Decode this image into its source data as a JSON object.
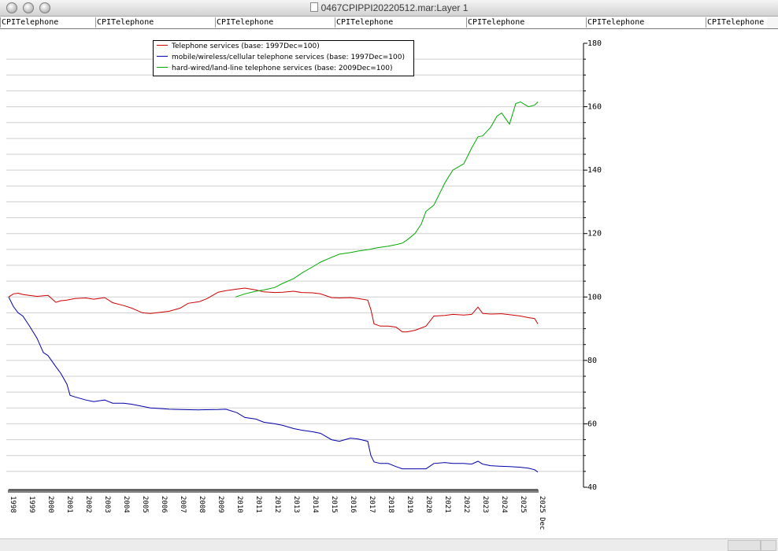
{
  "window": {
    "title": "0467CPIPPI20220512.mar:Layer 1"
  },
  "tabs": [
    "CPITelephone",
    "CPITelephone",
    "CPITelephone",
    "CPITelephone",
    "CPITelephone",
    "CPITelephone",
    "CPITelephone"
  ],
  "chart_data": {
    "type": "line",
    "title": "",
    "xlabel": "",
    "ylabel": "",
    "ylim": [
      40,
      180
    ],
    "y_ticks": [
      40,
      60,
      80,
      100,
      120,
      140,
      160,
      180
    ],
    "y_axis_position": "right",
    "grid": true,
    "legend_position": "top-left",
    "x_range": [
      "1997-12",
      "2025-12"
    ],
    "x_tick_labels": [
      "1998",
      "1999",
      "2000",
      "2001",
      "2002",
      "2003",
      "2004",
      "2005",
      "2006",
      "2007",
      "2008",
      "2009",
      "2010",
      "2011",
      "2012",
      "2013",
      "2014",
      "2015",
      "2016",
      "2017",
      "2018",
      "2019",
      "2020",
      "2021",
      "2022",
      "2023",
      "2024",
      "2025",
      "2025 Dec"
    ],
    "series": [
      {
        "name": "Telephone services (base: 1997Dec=100)",
        "color": "#cc0000",
        "points": [
          [
            "1997-12",
            100
          ],
          [
            "1998-03",
            101
          ],
          [
            "1998-06",
            101.2
          ],
          [
            "1998-09",
            100.8
          ],
          [
            "1999-01",
            100.5
          ],
          [
            "1999-06",
            100.2
          ],
          [
            "2000-01",
            100.5
          ],
          [
            "2000-06",
            98.3
          ],
          [
            "2000-09",
            98.8
          ],
          [
            "2001-01",
            99
          ],
          [
            "2001-06",
            99.5
          ],
          [
            "2002-01",
            99.7
          ],
          [
            "2002-06",
            99.3
          ],
          [
            "2003-01",
            99.8
          ],
          [
            "2003-06",
            98.2
          ],
          [
            "2004-01",
            97.3
          ],
          [
            "2004-06",
            96.5
          ],
          [
            "2005-01",
            95
          ],
          [
            "2005-06",
            94.8
          ],
          [
            "2006-01",
            95.2
          ],
          [
            "2006-06",
            95.5
          ],
          [
            "2007-01",
            96.5
          ],
          [
            "2007-06",
            98
          ],
          [
            "2008-01",
            98.5
          ],
          [
            "2008-06",
            99.5
          ],
          [
            "2009-01",
            101.5
          ],
          [
            "2009-06",
            102
          ],
          [
            "2010-01",
            102.5
          ],
          [
            "2010-06",
            102.8
          ],
          [
            "2011-01",
            102.2
          ],
          [
            "2011-06",
            101.6
          ],
          [
            "2012-01",
            101.4
          ],
          [
            "2012-06",
            101.5
          ],
          [
            "2013-01",
            101.8
          ],
          [
            "2013-06",
            101.4
          ],
          [
            "2014-01",
            101.3
          ],
          [
            "2014-06",
            101
          ],
          [
            "2015-01",
            99.8
          ],
          [
            "2015-06",
            99.7
          ],
          [
            "2016-01",
            99.8
          ],
          [
            "2016-06",
            99.5
          ],
          [
            "2016-12",
            99
          ],
          [
            "2017-02",
            96
          ],
          [
            "2017-04",
            91.5
          ],
          [
            "2017-08",
            90.8
          ],
          [
            "2018-01",
            90.8
          ],
          [
            "2018-06",
            90.5
          ],
          [
            "2018-10",
            89
          ],
          [
            "2019-01",
            89
          ],
          [
            "2019-06",
            89.5
          ],
          [
            "2020-01",
            90.8
          ],
          [
            "2020-06",
            94
          ],
          [
            "2021-01",
            94.2
          ],
          [
            "2021-06",
            94.5
          ],
          [
            "2022-01",
            94.3
          ],
          [
            "2022-06",
            94.5
          ],
          [
            "2022-10",
            96.8
          ],
          [
            "2023-01",
            94.8
          ],
          [
            "2023-06",
            94.6
          ],
          [
            "2024-01",
            94.7
          ],
          [
            "2024-06",
            94.4
          ],
          [
            "2025-01",
            94
          ],
          [
            "2025-06",
            93.5
          ],
          [
            "2025-10",
            93.2
          ],
          [
            "2025-12",
            91.5
          ]
        ]
      },
      {
        "name": "mobile/wireless/cellular telephone services (base: 1997Dec=100)",
        "color": "#0000aa",
        "points": [
          [
            "1997-12",
            100
          ],
          [
            "1998-03",
            97
          ],
          [
            "1998-06",
            95
          ],
          [
            "1998-09",
            94
          ],
          [
            "1999-01",
            91
          ],
          [
            "1999-06",
            87
          ],
          [
            "1999-10",
            82.5
          ],
          [
            "2000-01",
            81.5
          ],
          [
            "2000-06",
            78
          ],
          [
            "2000-09",
            76
          ],
          [
            "2001-01",
            72.5
          ],
          [
            "2001-03",
            69
          ],
          [
            "2001-06",
            68.5
          ],
          [
            "2002-01",
            67.5
          ],
          [
            "2002-06",
            67
          ],
          [
            "2003-01",
            67.5
          ],
          [
            "2003-06",
            66.5
          ],
          [
            "2004-01",
            66.5
          ],
          [
            "2004-06",
            66.2
          ],
          [
            "2005-01",
            65.5
          ],
          [
            "2005-06",
            65
          ],
          [
            "2006-01",
            64.8
          ],
          [
            "2006-06",
            64.6
          ],
          [
            "2007-01",
            64.5
          ],
          [
            "2008-01",
            64.4
          ],
          [
            "2009-01",
            64.5
          ],
          [
            "2009-06",
            64.6
          ],
          [
            "2010-01",
            63.5
          ],
          [
            "2010-06",
            62
          ],
          [
            "2011-01",
            61.5
          ],
          [
            "2011-06",
            60.5
          ],
          [
            "2012-01",
            60
          ],
          [
            "2012-06",
            59.5
          ],
          [
            "2013-01",
            58.5
          ],
          [
            "2013-06",
            58
          ],
          [
            "2014-01",
            57.5
          ],
          [
            "2014-06",
            57
          ],
          [
            "2015-01",
            55
          ],
          [
            "2015-06",
            54.5
          ],
          [
            "2016-01",
            55.5
          ],
          [
            "2016-06",
            55.2
          ],
          [
            "2016-12",
            54.5
          ],
          [
            "2017-02",
            50
          ],
          [
            "2017-04",
            48
          ],
          [
            "2017-08",
            47.5
          ],
          [
            "2018-01",
            47.5
          ],
          [
            "2018-06",
            46.5
          ],
          [
            "2018-10",
            45.8
          ],
          [
            "2019-06",
            45.8
          ],
          [
            "2020-01",
            45.8
          ],
          [
            "2020-06",
            47.5
          ],
          [
            "2021-01",
            47.8
          ],
          [
            "2021-06",
            47.5
          ],
          [
            "2022-01",
            47.5
          ],
          [
            "2022-06",
            47.3
          ],
          [
            "2022-10",
            48.2
          ],
          [
            "2023-01",
            47.3
          ],
          [
            "2023-06",
            46.8
          ],
          [
            "2024-01",
            46.6
          ],
          [
            "2024-06",
            46.5
          ],
          [
            "2025-01",
            46.3
          ],
          [
            "2025-06",
            46
          ],
          [
            "2025-10",
            45.5
          ],
          [
            "2025-12",
            44.8
          ]
        ]
      },
      {
        "name": "hard-wired/land-line telephone services (base: 2009Dec=100)",
        "color": "#00aa00",
        "points": [
          [
            "2009-12",
            100
          ],
          [
            "2010-06",
            101
          ],
          [
            "2011-01",
            101.8
          ],
          [
            "2011-06",
            102.2
          ],
          [
            "2012-01",
            103
          ],
          [
            "2012-06",
            104.3
          ],
          [
            "2013-01",
            105.8
          ],
          [
            "2013-06",
            107.5
          ],
          [
            "2014-01",
            109.5
          ],
          [
            "2014-06",
            111
          ],
          [
            "2015-01",
            112.5
          ],
          [
            "2015-06",
            113.5
          ],
          [
            "2016-01",
            114
          ],
          [
            "2016-06",
            114.5
          ],
          [
            "2017-01",
            115
          ],
          [
            "2017-06",
            115.5
          ],
          [
            "2018-01",
            116
          ],
          [
            "2018-06",
            116.5
          ],
          [
            "2018-10",
            117
          ],
          [
            "2019-01",
            118
          ],
          [
            "2019-06",
            120
          ],
          [
            "2019-10",
            123
          ],
          [
            "2020-01",
            127
          ],
          [
            "2020-06",
            129
          ],
          [
            "2021-01",
            136
          ],
          [
            "2021-06",
            140
          ],
          [
            "2022-01",
            142
          ],
          [
            "2022-06",
            147
          ],
          [
            "2022-10",
            150.5
          ],
          [
            "2023-01",
            150.8
          ],
          [
            "2023-06",
            153.5
          ],
          [
            "2023-10",
            157
          ],
          [
            "2024-01",
            158
          ],
          [
            "2024-06",
            154.5
          ],
          [
            "2024-10",
            161
          ],
          [
            "2025-01",
            161.5
          ],
          [
            "2025-06",
            160
          ],
          [
            "2025-10",
            160.5
          ],
          [
            "2025-12",
            161.5
          ]
        ]
      }
    ]
  }
}
